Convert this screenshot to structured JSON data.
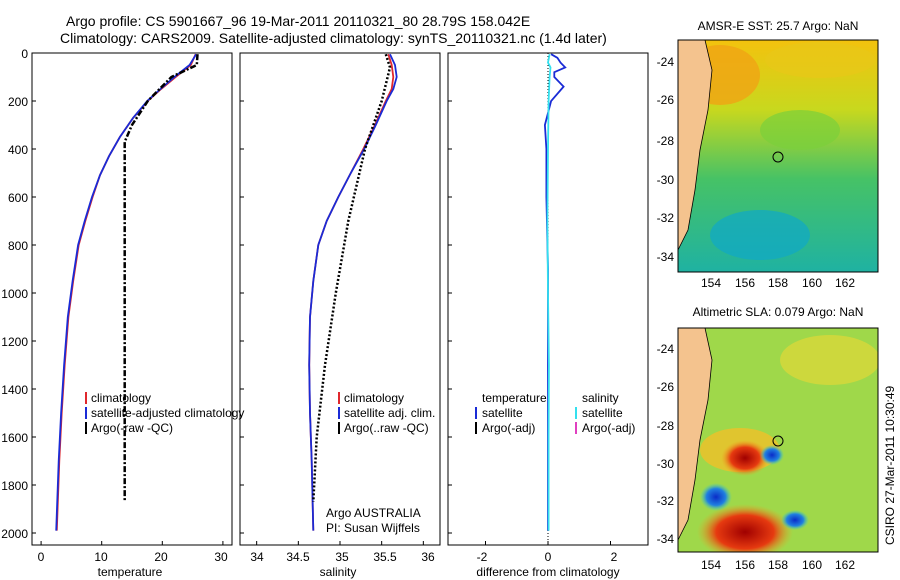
{
  "title": {
    "line1": "Argo profile: CS 5901667_96 19-Mar-2011 20110321_80 28.79S 158.042E",
    "line2": "Climatology: CARS2009. Satellite-adjusted climatology: synTS_20110321.nc (1.4d later)"
  },
  "colors": {
    "climatology": "#e0282d",
    "satellite": "#1a2bd6",
    "argo": "#000000",
    "sat_salinity": "#33e0ee",
    "argo_adj_salinity": "#e040c0"
  },
  "chart_data": [
    {
      "type": "line",
      "name": "temperature-profile",
      "xlabel": "temperature",
      "ylabel": "",
      "xlim": [
        -1.5,
        31.5
      ],
      "ylim": [
        2050,
        0
      ],
      "xticks": [
        "0",
        "10",
        "20",
        "30"
      ],
      "yticks": [
        "0",
        "200",
        "400",
        "600",
        "800",
        "1000",
        "1200",
        "1400",
        "1600",
        "1800",
        "2000"
      ],
      "series": [
        {
          "name": "climatology",
          "x": [
            25.5,
            24.7,
            22.2,
            19.8,
            17.6,
            15.2,
            13.0,
            11.2,
            9.7,
            8.5,
            7.3,
            6.2,
            5.3,
            4.5,
            3.9,
            3.4,
            3.0,
            2.6
          ],
          "y": [
            5,
            50,
            100,
            150,
            200,
            270,
            350,
            430,
            510,
            600,
            700,
            800,
            950,
            1100,
            1300,
            1500,
            1700,
            1990
          ]
        },
        {
          "name": "satellite-adjusted climatology",
          "x": [
            25.6,
            24.5,
            22.0,
            19.7,
            17.5,
            15.2,
            13.0,
            11.2,
            9.7,
            8.4,
            7.2,
            6.1,
            5.2,
            4.4,
            3.8,
            3.3,
            2.9,
            2.5
          ],
          "y": [
            5,
            50,
            100,
            150,
            200,
            270,
            350,
            430,
            510,
            600,
            700,
            800,
            950,
            1100,
            1300,
            1500,
            1700,
            1990
          ]
        },
        {
          "name": "Argo(-raw -QC)",
          "x": [
            25.8,
            25.7,
            21.5,
            17.6,
            15.0,
            13.8,
            13.8,
            13.8,
            13.8
          ],
          "y": [
            5,
            50,
            100,
            200,
            300,
            370,
            1000,
            1500,
            1870
          ]
        }
      ]
    },
    {
      "type": "line",
      "name": "salinity-profile",
      "xlabel": "salinity",
      "xlim": [
        33.8,
        36.2
      ],
      "ylim": [
        2050,
        0
      ],
      "xticks": [
        "34",
        "34.5",
        "35",
        "35.5",
        "36"
      ],
      "yticks": [],
      "series": [
        {
          "name": "climatology",
          "x": [
            35.58,
            35.62,
            35.64,
            35.62,
            35.55,
            35.42,
            35.28,
            35.13,
            34.98,
            34.84,
            34.74,
            34.68,
            34.64,
            34.63,
            34.64,
            34.66,
            34.68
          ],
          "y": [
            5,
            50,
            100,
            150,
            200,
            300,
            400,
            500,
            600,
            700,
            800,
            950,
            1100,
            1300,
            1500,
            1700,
            1990
          ]
        },
        {
          "name": "satellite adj. clim.",
          "x": [
            35.6,
            35.66,
            35.68,
            35.64,
            35.56,
            35.43,
            35.29,
            35.13,
            34.98,
            34.84,
            34.74,
            34.68,
            34.64,
            34.63,
            34.64,
            34.66,
            34.68
          ],
          "y": [
            5,
            50,
            100,
            150,
            200,
            300,
            400,
            500,
            600,
            700,
            800,
            950,
            1100,
            1300,
            1500,
            1700,
            1990
          ]
        },
        {
          "name": "Argo(..raw -QC)",
          "x": [
            35.55,
            35.6,
            35.5,
            35.3,
            35.1,
            34.95,
            34.82,
            34.72,
            34.68
          ],
          "y": [
            5,
            60,
            200,
            400,
            700,
            1000,
            1300,
            1600,
            1870
          ]
        }
      ]
    },
    {
      "type": "line",
      "name": "difference-profile",
      "xlabel": "difference from climatology",
      "xlim": [
        -3.2,
        3.2
      ],
      "ylim": [
        2050,
        0
      ],
      "xticks": [
        "-2",
        "0",
        "2"
      ],
      "yticks": [],
      "series": [
        {
          "name": "temperature satellite",
          "x": [
            0.1,
            0.3,
            0.4,
            0.55,
            0.2,
            0.2,
            0.5,
            0.1,
            -0.1,
            -0.05,
            -0.05,
            0,
            0,
            0,
            0
          ],
          "y": [
            5,
            20,
            40,
            60,
            80,
            100,
            140,
            200,
            300,
            400,
            600,
            900,
            1200,
            1600,
            1990
          ]
        },
        {
          "name": "salinity satellite",
          "x": [
            0.05,
            0.0,
            0.08,
            0.05,
            0.02,
            0.0,
            -0.02,
            0.0,
            0.03,
            0.02,
            0.02
          ],
          "y": [
            5,
            40,
            60,
            100,
            200,
            400,
            700,
            1000,
            1300,
            1600,
            1990
          ]
        }
      ]
    }
  ],
  "legends": {
    "temperature": {
      "items": [
        "climatology",
        "satellite-adjusted climatology",
        "Argo(-raw -QC)"
      ]
    },
    "salinity": {
      "items": [
        "climatology",
        "satellite adj. clim.",
        "Argo(..raw -QC)"
      ],
      "note1": "Argo AUSTRALIA",
      "note2": "PI: Susan Wijffels"
    },
    "difference": {
      "temp_head": "temperature",
      "sal_head": "salinity",
      "temp_items": [
        "satellite",
        "Argo(-adj)"
      ],
      "sal_items": [
        "satellite",
        "Argo(-adj)"
      ]
    }
  },
  "maps": {
    "sst": {
      "title": "AMSR-E SST: 25.7 Argo: NaN",
      "yticks": [
        "-24",
        "-26",
        "-28",
        "-30",
        "-32",
        "-34"
      ],
      "xticks": [
        "154",
        "156",
        "158",
        "160",
        "162"
      ]
    },
    "sla": {
      "title": "Altimetric SLA: 0.079 Argo: NaN",
      "yticks": [
        "-24",
        "-26",
        "-28",
        "-30",
        "-32",
        "-34"
      ],
      "xticks": [
        "154",
        "156",
        "158",
        "160",
        "162"
      ]
    },
    "float_position": {
      "lon": 158.042,
      "lat": -28.79
    }
  },
  "credit": "CSIRO 27-Mar-2011 10:30:49"
}
